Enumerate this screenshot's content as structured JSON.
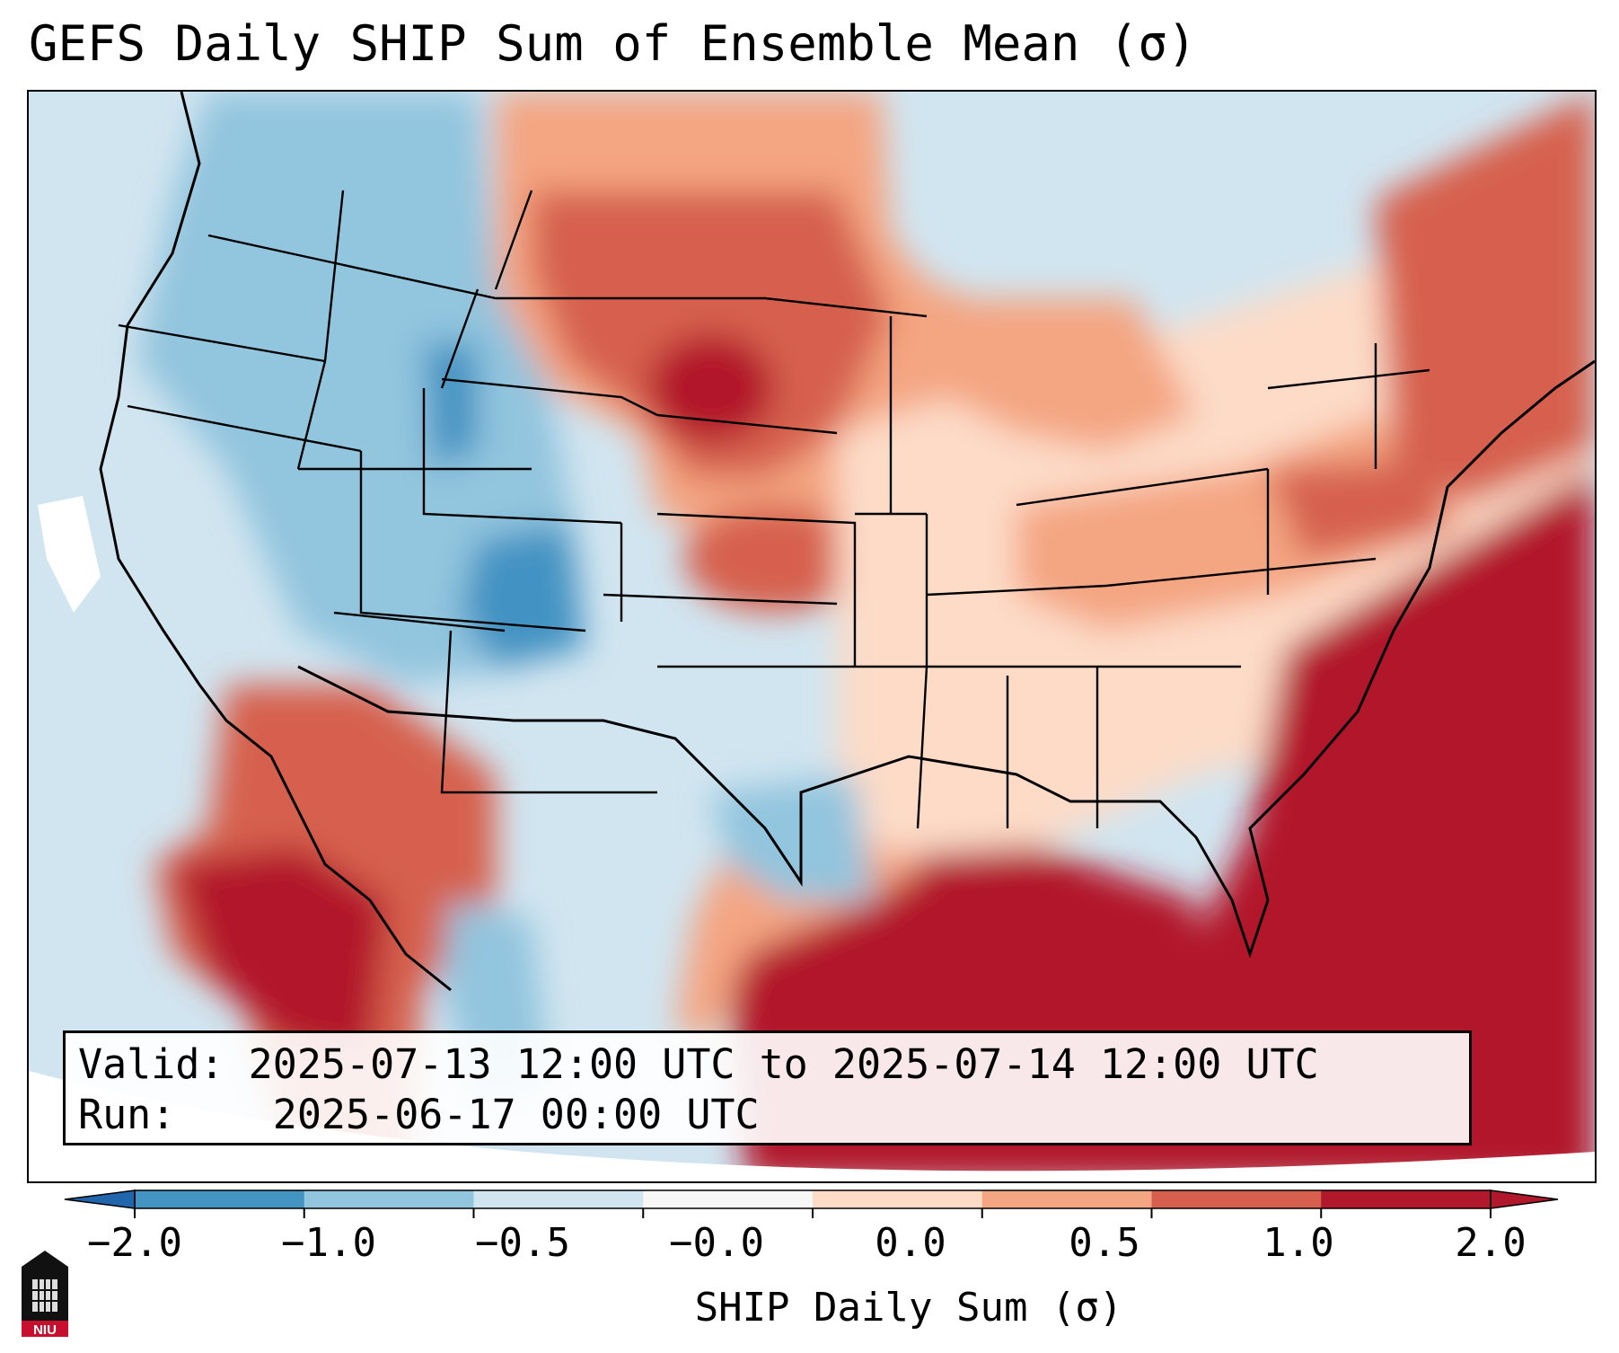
{
  "title": "GEFS Daily SHIP Sum of Ensemble Mean (σ)",
  "info": {
    "valid_label": "Valid:",
    "valid_value": "2025-07-13 12:00 UTC to 2025-07-14 12:00 UTC",
    "run_label": "Run:",
    "run_value": "2025-06-17 00:00 UTC"
  },
  "colorbar": {
    "label": "SHIP Daily Sum (σ)",
    "tick_labels": [
      "−2.0",
      "−1.0",
      "−0.5",
      "−0.0",
      "0.0",
      "0.5",
      "1.0",
      "2.0"
    ],
    "bin_colors": [
      "#4393c3",
      "#92c5de",
      "#d1e5f0",
      "#f7f7f7",
      "#fddbc7",
      "#f4a582",
      "#d6604d",
      "#b2182b"
    ],
    "under_color": "#2166ac",
    "over_color": "#b2182b"
  },
  "logo": {
    "text": "NIU"
  }
}
